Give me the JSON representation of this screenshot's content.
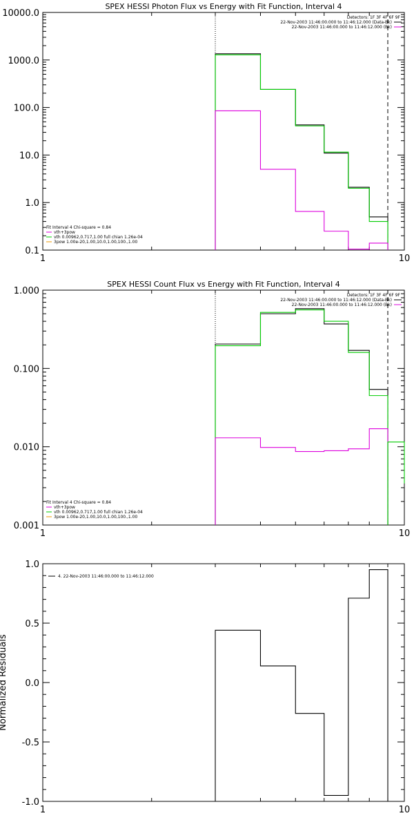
{
  "chart_data": [
    {
      "type": "line",
      "id": "photon",
      "title": "SPEX HESSI Photon Flux vs Energy with Fit Function, Interval 4",
      "xlabel": "",
      "ylabel": "",
      "x_scale": "log",
      "y_scale": "log",
      "xlim": [
        1,
        10
      ],
      "ylim": [
        0.1,
        10000
      ],
      "x_ticks": [
        "1",
        "10"
      ],
      "y_ticks": [
        "0.1",
        "1.0",
        "10.0",
        "100.0",
        "1000.0",
        "10000.0"
      ],
      "edges": [
        3,
        4,
        5,
        6,
        7,
        8,
        9
      ],
      "series": [
        {
          "color": "#000000",
          "values": [
            1350,
            240,
            43,
            11,
            2.1,
            0.5
          ]
        },
        {
          "color": "#00cc00",
          "values": [
            1280,
            240,
            41,
            11.5,
            2.0,
            0.4
          ]
        },
        {
          "color": "#dd00dd",
          "values": [
            85,
            5.0,
            0.65,
            0.25,
            0.105,
            0.14
          ]
        }
      ],
      "vlines": [
        {
          "x": 3,
          "style": "dotted"
        },
        {
          "x": 9,
          "style": "dashed"
        }
      ],
      "legend_top_right": [
        "Detectors: 1F 3F 4F 6F 9F",
        "22-Nov-2003 11:46:00.000 to 11:46:12.000 (Data-Bk)",
        "22-Nov-2003 11:46:00.000 to 11:46:12.000 (Bk)"
      ],
      "legend_bottom_left": [
        "Fit Interval  4    Chi-square = 0.84",
        "vth+3pow",
        "vth 0.00962,0.717,1.00  full chian 1.26e-04",
        "3pow 1.00e-20,1.00,10.0,1.00,100.,1.00"
      ]
    },
    {
      "type": "line",
      "id": "count",
      "title": "SPEX HESSI Count Flux vs Energy with Fit Function, Interval 4",
      "xlabel": "",
      "ylabel": "",
      "x_scale": "log",
      "y_scale": "log",
      "xlim": [
        1,
        10
      ],
      "ylim": [
        0.001,
        1
      ],
      "x_ticks": [
        "1",
        "10"
      ],
      "y_ticks": [
        "0.001",
        "0.010",
        "0.100",
        "1.000"
      ],
      "edges": [
        3,
        4,
        5,
        6,
        7,
        8,
        9
      ],
      "series": [
        {
          "color": "#000000",
          "values": [
            0.205,
            0.5,
            0.58,
            0.37,
            0.17,
            0.054
          ]
        },
        {
          "color": "#00cc00",
          "values": [
            0.195,
            0.52,
            0.56,
            0.4,
            0.16,
            0.045
          ]
        },
        {
          "color": "#dd00dd",
          "values": [
            0.013,
            0.0098,
            0.0087,
            0.0089,
            0.0094,
            0.017
          ]
        }
      ],
      "extra_segment": {
        "color": "#00cc00",
        "x": [
          9,
          10
        ],
        "y": 0.0115
      },
      "vlines": [
        {
          "x": 3,
          "style": "dotted"
        },
        {
          "x": 9,
          "style": "dashed"
        }
      ],
      "legend_top_right": [
        "Detectors: 1F 3F 4F 6F 9F",
        "22-Nov-2003 11:46:00.000 to 11:46:12.000 (Data-Bk)",
        "22-Nov-2003 11:46:00.000 to 11:46:12.000 (Bk)"
      ],
      "legend_bottom_left": [
        "Fit Interval  4    Chi-square = 0.84",
        "vth+3pow",
        "vth 0.00962,0.717,1.00  full chian 1.26e-04",
        "3pow 1.00e-20,1.00,10.0,1.00,100.,1.00"
      ]
    },
    {
      "type": "line",
      "id": "resid",
      "title": "",
      "xlabel": "",
      "ylabel": "Normalized Residuals",
      "x_scale": "log",
      "y_scale": "linear",
      "xlim": [
        1,
        10
      ],
      "ylim": [
        -1.0,
        1.0
      ],
      "x_ticks": [
        "1",
        "10"
      ],
      "y_ticks": [
        "-1.0",
        "-0.5",
        "0.0",
        "0.5",
        "1.0"
      ],
      "edges": [
        3,
        4,
        5,
        6,
        7,
        8,
        9
      ],
      "series": [
        {
          "color": "#000000",
          "values": [
            0.44,
            0.14,
            -0.26,
            -0.95,
            0.71,
            0.95
          ]
        }
      ],
      "legend_top_left": [
        "4. 22-Nov-2003 11:46:00.000 to 11:46:12.000"
      ]
    }
  ]
}
